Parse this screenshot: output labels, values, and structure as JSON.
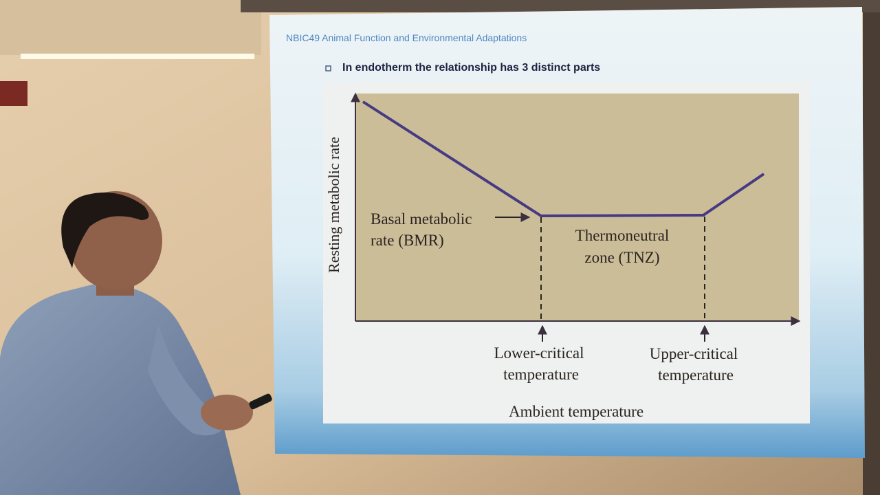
{
  "slide": {
    "header": "NBIC49 Animal Function and Environmental Adaptations",
    "bullet": "In endotherm the relationship has 3 distinct parts",
    "diagram": {
      "y_axis_label": "Resting metabolic rate",
      "x_axis_label": "Ambient temperature",
      "bmr_label": [
        "Basal metabolic",
        "rate (BMR)"
      ],
      "tnz_label": [
        "Thermoneutral",
        "zone (TNZ)"
      ],
      "lower_critical_label": [
        "Lower-critical",
        "temperature"
      ],
      "upper_critical_label": [
        "Upper-critical",
        "temperature"
      ]
    }
  }
}
